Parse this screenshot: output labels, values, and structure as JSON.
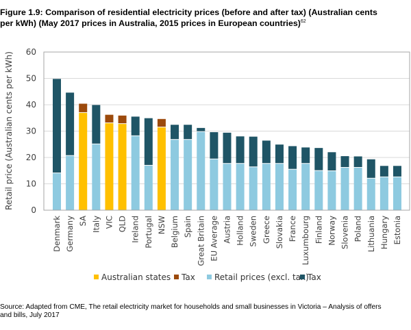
{
  "title": "Figure 1.9: Comparison of residential electricity prices (before and after tax) (Australian cents per kWh) (May 2017 prices in Australia, 2015 prices in European countries)",
  "title_line1": "Figure 1.9: Comparison of residential electricity prices (before and after tax) (Australian cents",
  "title_line2": "per kWh) (May 2017 prices in Australia, 2015 prices in European countries)",
  "title_footnote": "62",
  "source_line1": "Source: Adapted from CME, The retail electricity market for households and small businesses in Victoria – Analysis of offers",
  "source_line2": "and bills, July 2017",
  "colors": {
    "australian_states": "#ffc000",
    "australian_tax": "#9c4a0c",
    "retail_excl_tax": "#8ecae0",
    "tax": "#1f5566",
    "grid": "#d9d9d9",
    "axis": "#a6a6a6"
  },
  "chart_data": {
    "type": "bar",
    "stacked": true,
    "title": "Comparison of residential electricity prices (before and after tax)",
    "xlabel": "",
    "ylabel": "Retail price (Australian cents per kWh)",
    "ylim": [
      0,
      60
    ],
    "yticks": [
      0,
      10,
      20,
      30,
      40,
      50,
      60
    ],
    "grid": true,
    "legend_position": "bottom",
    "categories": [
      "Denmark",
      "Germany",
      "SA",
      "Italy",
      "VIC",
      "QLD",
      "Ireland",
      "Portugal",
      "NSW",
      "Belgium",
      "Spain",
      "Great Britain",
      "EU Average",
      "Austria",
      "Holland",
      "Sweden",
      "Greece",
      "Slovakia",
      "France",
      "Luxumbourg",
      "Finland",
      "Norway",
      "Slovenia",
      "Poland",
      "Lithuania",
      "Hungary",
      "Estonia"
    ],
    "is_australian": [
      false,
      false,
      true,
      false,
      true,
      true,
      false,
      false,
      true,
      false,
      false,
      false,
      false,
      false,
      false,
      false,
      false,
      false,
      false,
      false,
      false,
      false,
      false,
      false,
      false,
      false,
      false
    ],
    "series": [
      {
        "name": "Retail prices (excl. tax)",
        "role": "base",
        "values": [
          14.0,
          20.6,
          36.9,
          25.0,
          33.0,
          32.7,
          28.1,
          16.9,
          31.4,
          26.7,
          26.7,
          29.7,
          19.3,
          17.6,
          17.6,
          16.3,
          17.6,
          17.6,
          15.4,
          17.6,
          14.9,
          14.8,
          16.1,
          16.1,
          12.0,
          12.5,
          12.5
        ]
      },
      {
        "name": "Tax",
        "role": "tax",
        "values": [
          35.8,
          24.0,
          3.5,
          14.9,
          3.2,
          3.2,
          7.4,
          18.0,
          3.2,
          5.7,
          5.7,
          1.5,
          10.3,
          11.8,
          10.4,
          11.6,
          8.8,
          7.3,
          8.9,
          6.2,
          8.7,
          7.2,
          4.4,
          4.3,
          7.3,
          4.3,
          4.3
        ]
      }
    ],
    "totals": [
      49.8,
      44.6,
      40.4,
      39.9,
      36.2,
      35.9,
      35.5,
      34.9,
      34.6,
      32.4,
      32.4,
      31.2,
      29.6,
      29.4,
      28.0,
      27.9,
      26.4,
      24.9,
      24.3,
      23.8,
      23.6,
      22.0,
      20.5,
      20.4,
      19.3,
      16.8,
      16.8
    ],
    "legend": [
      {
        "label": "Australian states",
        "color_key": "australian_states"
      },
      {
        "label": "Tax",
        "color_key": "australian_tax"
      },
      {
        "label": "Retail prices (excl. tax)",
        "color_key": "retail_excl_tax"
      },
      {
        "label": "Tax",
        "color_key": "tax"
      }
    ]
  }
}
